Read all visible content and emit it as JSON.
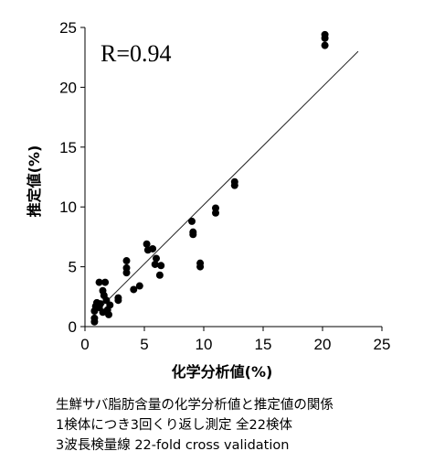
{
  "chart_data": {
    "type": "scatter",
    "title": "",
    "xlabel": "化学分析値(%)",
    "ylabel": "推定値(%)",
    "xlim": [
      0,
      25
    ],
    "ylim": [
      0,
      25
    ],
    "xticks": [
      "0",
      "5",
      "10",
      "15",
      "20",
      "25"
    ],
    "yticks": [
      "0",
      "5",
      "10",
      "15",
      "20",
      "25"
    ],
    "annotation": "R=0.94",
    "fit_line": {
      "x": [
        0.8,
        23.0
      ],
      "y": [
        1.1,
        23.0
      ]
    },
    "points": [
      {
        "x": 0.8,
        "y": 0.4
      },
      {
        "x": 0.8,
        "y": 0.7
      },
      {
        "x": 0.8,
        "y": 1.3
      },
      {
        "x": 0.9,
        "y": 1.7
      },
      {
        "x": 1.0,
        "y": 2.0
      },
      {
        "x": 1.2,
        "y": 1.6
      },
      {
        "x": 1.2,
        "y": 3.7
      },
      {
        "x": 1.3,
        "y": 1.9
      },
      {
        "x": 1.5,
        "y": 3.0
      },
      {
        "x": 1.5,
        "y": 1.2
      },
      {
        "x": 1.6,
        "y": 2.6
      },
      {
        "x": 1.7,
        "y": 3.7
      },
      {
        "x": 1.8,
        "y": 2.2
      },
      {
        "x": 1.9,
        "y": 1.4
      },
      {
        "x": 2.0,
        "y": 1.0
      },
      {
        "x": 2.1,
        "y": 1.8
      },
      {
        "x": 2.8,
        "y": 2.2
      },
      {
        "x": 2.8,
        "y": 2.4
      },
      {
        "x": 3.5,
        "y": 4.5
      },
      {
        "x": 3.5,
        "y": 4.9
      },
      {
        "x": 3.5,
        "y": 5.5
      },
      {
        "x": 4.1,
        "y": 3.1
      },
      {
        "x": 4.6,
        "y": 3.4
      },
      {
        "x": 5.2,
        "y": 6.9
      },
      {
        "x": 5.3,
        "y": 6.4
      },
      {
        "x": 5.7,
        "y": 6.5
      },
      {
        "x": 5.9,
        "y": 5.2
      },
      {
        "x": 6.0,
        "y": 5.7
      },
      {
        "x": 6.3,
        "y": 4.3
      },
      {
        "x": 6.4,
        "y": 5.1
      },
      {
        "x": 9.0,
        "y": 8.8
      },
      {
        "x": 9.1,
        "y": 7.7
      },
      {
        "x": 9.1,
        "y": 7.9
      },
      {
        "x": 9.7,
        "y": 5.0
      },
      {
        "x": 9.7,
        "y": 5.3
      },
      {
        "x": 11.0,
        "y": 9.5
      },
      {
        "x": 11.0,
        "y": 9.9
      },
      {
        "x": 12.6,
        "y": 11.8
      },
      {
        "x": 12.6,
        "y": 12.1
      },
      {
        "x": 20.2,
        "y": 23.5
      },
      {
        "x": 20.2,
        "y": 24.1
      },
      {
        "x": 20.2,
        "y": 24.4
      }
    ],
    "grid": false,
    "legend": "none"
  },
  "caption": {
    "line1": "生鮮サバ脂肪含量の化学分析値と推定値の関係",
    "line2": "1検体につき3回くり返し測定  全22検体",
    "line3": "3波長検量線 22-fold cross validation"
  }
}
